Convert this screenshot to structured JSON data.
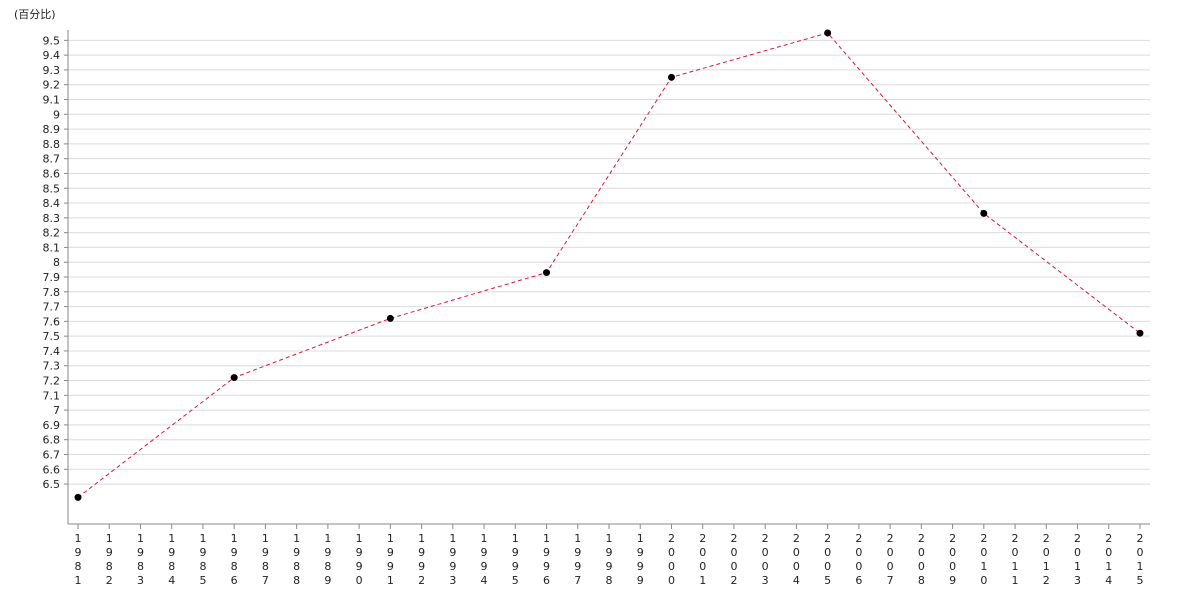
{
  "chart_data": {
    "type": "line",
    "y_label": "(百分比)",
    "x": [
      1981,
      1986,
      1991,
      1996,
      2000,
      2005,
      2010,
      2015
    ],
    "series": [
      {
        "color": "#dc143c",
        "marker_color": "#000000",
        "values": [
          6.41,
          7.22,
          7.62,
          7.93,
          9.25,
          9.55,
          8.33,
          7.52
        ]
      }
    ],
    "xlim": [
      1981,
      2015
    ],
    "xticks": [
      1981,
      1982,
      1983,
      1984,
      1985,
      1986,
      1987,
      1988,
      1989,
      1990,
      1991,
      1992,
      1993,
      1994,
      1995,
      1996,
      1997,
      1998,
      1999,
      2000,
      2001,
      2002,
      2003,
      2004,
      2005,
      2006,
      2007,
      2008,
      2009,
      2010,
      2011,
      2012,
      2013,
      2014,
      2015
    ],
    "ylim": [
      6.23,
      9.57
    ],
    "yticks": [
      6.5,
      6.6,
      6.7,
      6.8,
      6.9,
      7,
      7.1,
      7.2,
      7.3,
      7.4,
      7.5,
      7.6,
      7.7,
      7.8,
      7.9,
      8,
      8.1,
      8.2,
      8.3,
      8.4,
      8.5,
      8.6,
      8.7,
      8.8,
      8.9,
      9,
      9.1,
      9.2,
      9.3,
      9.4,
      9.5
    ],
    "grid": true
  }
}
